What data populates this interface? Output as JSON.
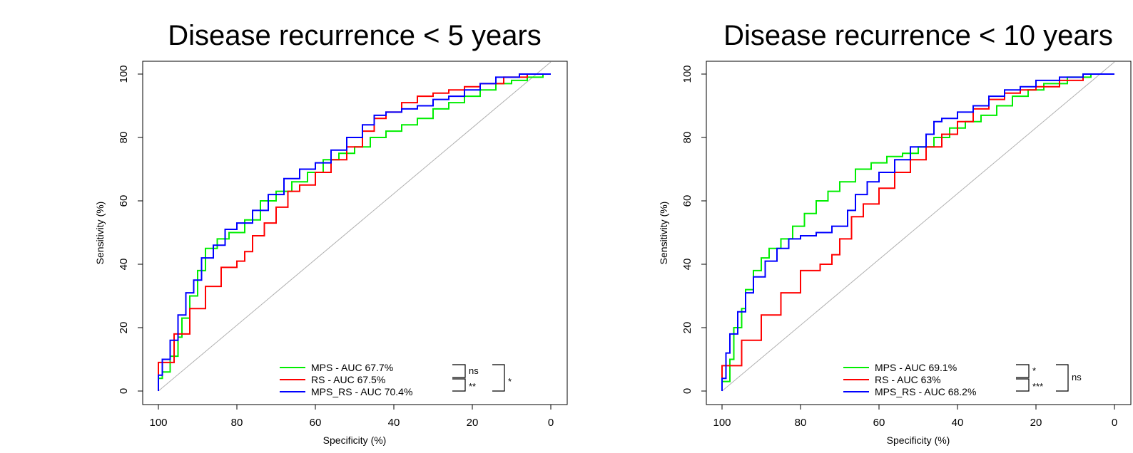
{
  "chart_data": [
    {
      "type": "line",
      "title": "Disease recurrence < 5 years",
      "xlabel": "Specificity (%)",
      "ylabel": "Sensitivity (%)",
      "xlim": [
        100,
        0
      ],
      "ylim": [
        0,
        100
      ],
      "x_ticks": [
        "100",
        "80",
        "60",
        "40",
        "20",
        "0"
      ],
      "y_ticks": [
        "0",
        "20",
        "40",
        "60",
        "80",
        "100"
      ],
      "grid": false,
      "legend_position": "bottom-right",
      "series": [
        {
          "name": "MPS - AUC 67.7%",
          "color": "#00ee00",
          "points": [
            [
              100,
              0
            ],
            [
              99,
              4
            ],
            [
              97,
              6
            ],
            [
              95,
              11
            ],
            [
              94,
              17
            ],
            [
              92,
              23
            ],
            [
              90,
              30
            ],
            [
              88,
              38
            ],
            [
              85,
              45
            ],
            [
              82,
              48
            ],
            [
              78,
              50
            ],
            [
              74,
              54
            ],
            [
              70,
              60
            ],
            [
              66,
              63
            ],
            [
              62,
              66
            ],
            [
              58,
              69
            ],
            [
              54,
              73
            ],
            [
              50,
              75
            ],
            [
              46,
              77
            ],
            [
              42,
              80
            ],
            [
              38,
              82
            ],
            [
              34,
              84
            ],
            [
              30,
              86
            ],
            [
              26,
              89
            ],
            [
              22,
              91
            ],
            [
              18,
              93
            ],
            [
              14,
              95
            ],
            [
              10,
              97
            ],
            [
              6,
              98
            ],
            [
              2,
              99
            ],
            [
              0,
              100
            ]
          ]
        },
        {
          "name": "RS - AUC 67.5%",
          "color": "#ff0000",
          "points": [
            [
              100,
              0
            ],
            [
              96,
              9
            ],
            [
              92,
              18
            ],
            [
              88,
              26
            ],
            [
              84,
              33
            ],
            [
              80,
              39
            ],
            [
              78,
              41
            ],
            [
              76,
              44
            ],
            [
              73,
              49
            ],
            [
              70,
              53
            ],
            [
              67,
              58
            ],
            [
              64,
              63
            ],
            [
              60,
              65
            ],
            [
              56,
              69
            ],
            [
              52,
              73
            ],
            [
              48,
              77
            ],
            [
              45,
              82
            ],
            [
              42,
              86
            ],
            [
              38,
              88
            ],
            [
              34,
              91
            ],
            [
              30,
              93
            ],
            [
              26,
              94
            ],
            [
              22,
              95
            ],
            [
              18,
              96
            ],
            [
              12,
              97
            ],
            [
              6,
              99
            ],
            [
              0,
              100
            ]
          ]
        },
        {
          "name": "MPS_RS - AUC 70.4%",
          "color": "#0000ff",
          "points": [
            [
              100,
              0
            ],
            [
              99,
              5
            ],
            [
              97,
              10
            ],
            [
              95,
              16
            ],
            [
              93,
              24
            ],
            [
              91,
              31
            ],
            [
              89,
              35
            ],
            [
              86,
              42
            ],
            [
              83,
              46
            ],
            [
              80,
              51
            ],
            [
              76,
              53
            ],
            [
              72,
              57
            ],
            [
              68,
              62
            ],
            [
              64,
              67
            ],
            [
              60,
              70
            ],
            [
              56,
              72
            ],
            [
              52,
              76
            ],
            [
              48,
              80
            ],
            [
              45,
              84
            ],
            [
              42,
              87
            ],
            [
              38,
              88
            ],
            [
              34,
              89
            ],
            [
              30,
              90
            ],
            [
              26,
              92
            ],
            [
              22,
              93
            ],
            [
              18,
              95
            ],
            [
              14,
              97
            ],
            [
              8,
              99
            ],
            [
              4,
              100
            ],
            [
              0,
              100
            ]
          ]
        }
      ],
      "significance": {
        "inner_top": "ns",
        "inner_bottom": "**",
        "outer": "*"
      }
    },
    {
      "type": "line",
      "title": "Disease recurrence < 10 years",
      "xlabel": "Specificity (%)",
      "ylabel": "Sensitivity (%)",
      "xlim": [
        100,
        0
      ],
      "ylim": [
        0,
        100
      ],
      "x_ticks": [
        "100",
        "80",
        "60",
        "40",
        "20",
        "0"
      ],
      "y_ticks": [
        "0",
        "20",
        "40",
        "60",
        "80",
        "100"
      ],
      "grid": false,
      "legend_position": "bottom-right",
      "series": [
        {
          "name": "MPS - AUC 69.1%",
          "color": "#00ee00",
          "points": [
            [
              100,
              0
            ],
            [
              98,
              3
            ],
            [
              97,
              10
            ],
            [
              95,
              20
            ],
            [
              94,
              26
            ],
            [
              92,
              32
            ],
            [
              90,
              38
            ],
            [
              88,
              42
            ],
            [
              85,
              45
            ],
            [
              82,
              48
            ],
            [
              79,
              52
            ],
            [
              76,
              56
            ],
            [
              73,
              60
            ],
            [
              70,
              63
            ],
            [
              66,
              66
            ],
            [
              62,
              70
            ],
            [
              58,
              72
            ],
            [
              54,
              74
            ],
            [
              50,
              75
            ],
            [
              46,
              77
            ],
            [
              42,
              80
            ],
            [
              38,
              83
            ],
            [
              34,
              85
            ],
            [
              30,
              87
            ],
            [
              26,
              90
            ],
            [
              22,
              93
            ],
            [
              18,
              95
            ],
            [
              12,
              97
            ],
            [
              6,
              99
            ],
            [
              0,
              100
            ]
          ]
        },
        {
          "name": "RS - AUC 63%",
          "color": "#ff0000",
          "points": [
            [
              100,
              0
            ],
            [
              95,
              8
            ],
            [
              90,
              16
            ],
            [
              85,
              24
            ],
            [
              80,
              31
            ],
            [
              75,
              38
            ],
            [
              72,
              40
            ],
            [
              70,
              43
            ],
            [
              67,
              48
            ],
            [
              64,
              55
            ],
            [
              60,
              59
            ],
            [
              56,
              64
            ],
            [
              52,
              69
            ],
            [
              48,
              73
            ],
            [
              44,
              77
            ],
            [
              40,
              81
            ],
            [
              36,
              85
            ],
            [
              32,
              89
            ],
            [
              28,
              92
            ],
            [
              24,
              94
            ],
            [
              20,
              95
            ],
            [
              14,
              96
            ],
            [
              8,
              98
            ],
            [
              0,
              100
            ]
          ]
        },
        {
          "name": "MPS_RS - AUC 68.2%",
          "color": "#0000ff",
          "points": [
            [
              100,
              0
            ],
            [
              99,
              4
            ],
            [
              98,
              12
            ],
            [
              96,
              18
            ],
            [
              94,
              25
            ],
            [
              92,
              31
            ],
            [
              89,
              36
            ],
            [
              86,
              41
            ],
            [
              83,
              45
            ],
            [
              80,
              48
            ],
            [
              76,
              49
            ],
            [
              72,
              50
            ],
            [
              68,
              52
            ],
            [
              66,
              57
            ],
            [
              63,
              62
            ],
            [
              60,
              66
            ],
            [
              56,
              69
            ],
            [
              52,
              73
            ],
            [
              48,
              77
            ],
            [
              46,
              81
            ],
            [
              44,
              85
            ],
            [
              40,
              86
            ],
            [
              36,
              88
            ],
            [
              32,
              90
            ],
            [
              28,
              93
            ],
            [
              24,
              95
            ],
            [
              20,
              96
            ],
            [
              14,
              98
            ],
            [
              8,
              99
            ],
            [
              2,
              100
            ],
            [
              0,
              100
            ]
          ]
        }
      ],
      "significance": {
        "inner_top": "*",
        "inner_bottom": "***",
        "outer": "ns"
      }
    }
  ]
}
